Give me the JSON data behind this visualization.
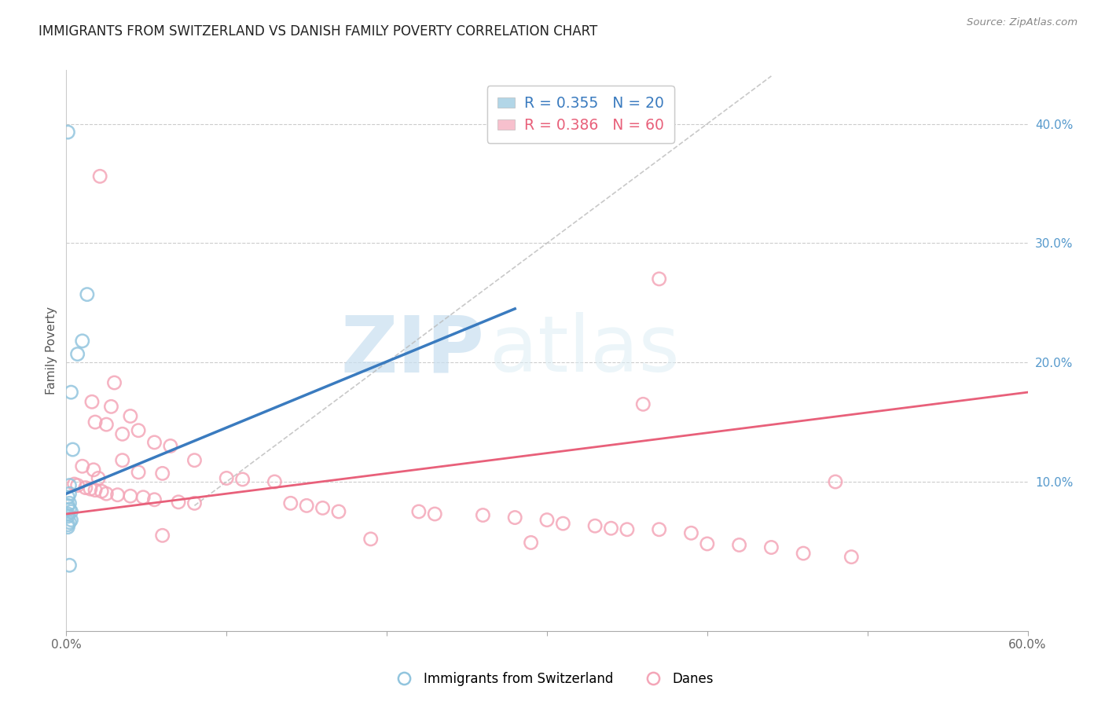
{
  "title": "IMMIGRANTS FROM SWITZERLAND VS DANISH FAMILY POVERTY CORRELATION CHART",
  "source": "Source: ZipAtlas.com",
  "ylabel": "Family Poverty",
  "xlim": [
    0.0,
    0.6
  ],
  "ylim": [
    -0.025,
    0.445
  ],
  "legend_r1": "R = 0.355",
  "legend_n1": "N = 20",
  "legend_r2": "R = 0.386",
  "legend_n2": "N = 60",
  "legend_label1": "Immigrants from Switzerland",
  "legend_label2": "Danes",
  "blue_color": "#92c5de",
  "pink_color": "#f4a6b8",
  "blue_line_color": "#3a7bbf",
  "pink_line_color": "#e8607a",
  "diag_line_color": "#bbbbbb",
  "watermark_zip": "ZIP",
  "watermark_atlas": "atlas",
  "watermark_color": "#ddeef8",
  "blue_line": [
    [
      0.0,
      0.09
    ],
    [
      0.28,
      0.245
    ]
  ],
  "pink_line": [
    [
      0.0,
      0.073
    ],
    [
      0.6,
      0.175
    ]
  ],
  "diag_line": [
    [
      0.08,
      0.08
    ],
    [
      0.44,
      0.44
    ]
  ],
  "scatter_blue": [
    [
      0.001,
      0.393
    ],
    [
      0.013,
      0.257
    ],
    [
      0.01,
      0.218
    ],
    [
      0.007,
      0.207
    ],
    [
      0.003,
      0.175
    ],
    [
      0.004,
      0.127
    ],
    [
      0.002,
      0.097
    ],
    [
      0.002,
      0.09
    ],
    [
      0.001,
      0.087
    ],
    [
      0.002,
      0.082
    ],
    [
      0.001,
      0.08
    ],
    [
      0.002,
      0.077
    ],
    [
      0.003,
      0.075
    ],
    [
      0.001,
      0.073
    ],
    [
      0.001,
      0.071
    ],
    [
      0.003,
      0.068
    ],
    [
      0.002,
      0.066
    ],
    [
      0.001,
      0.064
    ],
    [
      0.001,
      0.062
    ],
    [
      0.002,
      0.03
    ]
  ],
  "scatter_pink": [
    [
      0.021,
      0.356
    ],
    [
      0.37,
      0.27
    ],
    [
      0.03,
      0.183
    ],
    [
      0.016,
      0.167
    ],
    [
      0.028,
      0.163
    ],
    [
      0.04,
      0.155
    ],
    [
      0.018,
      0.15
    ],
    [
      0.025,
      0.148
    ],
    [
      0.045,
      0.143
    ],
    [
      0.035,
      0.14
    ],
    [
      0.055,
      0.133
    ],
    [
      0.065,
      0.13
    ],
    [
      0.035,
      0.118
    ],
    [
      0.08,
      0.118
    ],
    [
      0.01,
      0.113
    ],
    [
      0.017,
      0.11
    ],
    [
      0.045,
      0.108
    ],
    [
      0.06,
      0.107
    ],
    [
      0.02,
      0.103
    ],
    [
      0.1,
      0.103
    ],
    [
      0.11,
      0.102
    ],
    [
      0.13,
      0.1
    ],
    [
      0.36,
      0.165
    ],
    [
      0.48,
      0.1
    ],
    [
      0.005,
      0.098
    ],
    [
      0.007,
      0.097
    ],
    [
      0.012,
      0.095
    ],
    [
      0.015,
      0.094
    ],
    [
      0.018,
      0.093
    ],
    [
      0.022,
      0.092
    ],
    [
      0.025,
      0.09
    ],
    [
      0.032,
      0.089
    ],
    [
      0.04,
      0.088
    ],
    [
      0.048,
      0.087
    ],
    [
      0.055,
      0.085
    ],
    [
      0.07,
      0.083
    ],
    [
      0.08,
      0.082
    ],
    [
      0.14,
      0.082
    ],
    [
      0.15,
      0.08
    ],
    [
      0.16,
      0.078
    ],
    [
      0.17,
      0.075
    ],
    [
      0.22,
      0.075
    ],
    [
      0.23,
      0.073
    ],
    [
      0.26,
      0.072
    ],
    [
      0.28,
      0.07
    ],
    [
      0.3,
      0.068
    ],
    [
      0.31,
      0.065
    ],
    [
      0.33,
      0.063
    ],
    [
      0.34,
      0.061
    ],
    [
      0.35,
      0.06
    ],
    [
      0.37,
      0.06
    ],
    [
      0.39,
      0.057
    ],
    [
      0.06,
      0.055
    ],
    [
      0.19,
      0.052
    ],
    [
      0.29,
      0.049
    ],
    [
      0.4,
      0.048
    ],
    [
      0.42,
      0.047
    ],
    [
      0.44,
      0.045
    ],
    [
      0.46,
      0.04
    ],
    [
      0.49,
      0.037
    ]
  ]
}
